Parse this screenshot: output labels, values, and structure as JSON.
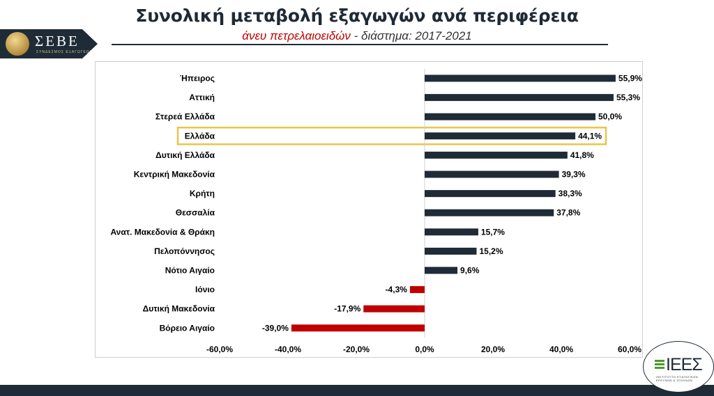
{
  "header": {
    "title": "Συνολική μεταβολή εξαγωγών ανά περιφέρεια",
    "subtitle_highlight": "άνευ πετρελαιοειδών",
    "subtitle_rest": " - διάστημα: 2017-2021"
  },
  "logo": {
    "text": "ΣΕΒΕ",
    "subtext": "ΣΥΝΔΕΣΜΟΣ ΕΞΑΓΩΓΕΩΝ"
  },
  "brand": {
    "text": "ΙΕΕΣ",
    "subtext": "ΙΝΣΤΙΤΟΥΤΟ ΕΞΑΓΩΓΙΚΩΝ ΕΡΕΥΝΩΝ & ΣΠΟΥΔΩΝ"
  },
  "colors": {
    "positive": "#1f2b36",
    "negative": "#c00000",
    "highlight": "#e8c547",
    "brand_green": "#4c9a2a"
  },
  "chart_data": {
    "type": "bar",
    "orientation": "horizontal",
    "categories": [
      "Ήπειρος",
      "Αττική",
      "Στερεά Ελλάδα",
      "Ελλάδα",
      "Δυτική Ελλάδα",
      "Κεντρική Μακεδονία",
      "Κρήτη",
      "Θεσσαλία",
      "Ανατ. Μακεδονία & Θράκη",
      "Πελοπόννησος",
      "Νότιο Αιγαίο",
      "Ιόνιο",
      "Δυτική Μακεδονία",
      "Βόρειο Αιγαίο"
    ],
    "values": [
      55.9,
      55.3,
      50.0,
      44.1,
      41.8,
      39.3,
      38.3,
      37.8,
      15.7,
      15.2,
      9.6,
      -4.3,
      -17.9,
      -39.0
    ],
    "value_labels": [
      "55,9%",
      "55,3%",
      "50,0%",
      "44,1%",
      "41,8%",
      "39,3%",
      "38,3%",
      "37,8%",
      "15,7%",
      "15,2%",
      "9,6%",
      "-4,3%",
      "-17,9%",
      "-39,0%"
    ],
    "highlight_category": "Ελλάδα",
    "xlim": [
      -60,
      60
    ],
    "x_ticks": [
      -60,
      -40,
      -20,
      0,
      20,
      40,
      60
    ],
    "x_tick_labels": [
      "-60,0%",
      "-40,0%",
      "-20,0%",
      "0,0%",
      "20,0%",
      "40,0%",
      "60,0%"
    ],
    "grid": false
  }
}
